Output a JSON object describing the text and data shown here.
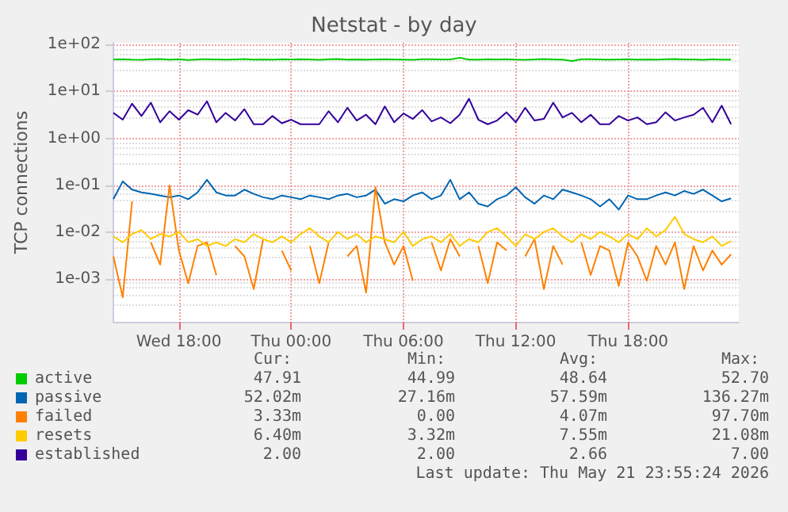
{
  "chart_data": {
    "type": "line",
    "title": "Netstat - by day",
    "ylabel": "TCP connections",
    "log": "y",
    "grid": true,
    "legend": "bottom",
    "marker": "none",
    "line_style": "solid",
    "xlim": [
      "2026-05-20T14:30",
      "2026-05-21T23:55"
    ],
    "xticks": [
      {
        "value": "2026-05-20T18:00",
        "label": "Wed 18:00"
      },
      {
        "value": "2026-05-21T00:00",
        "label": "Thu 00:00"
      },
      {
        "value": "2026-05-21T06:00",
        "label": "Thu 06:00"
      },
      {
        "value": "2026-05-21T12:00",
        "label": "Thu 12:00"
      },
      {
        "value": "2026-05-21T18:00",
        "label": "Thu 18:00"
      }
    ],
    "ylim": [
      0.00012,
      110
    ],
    "yticks": [
      {
        "value": 100,
        "label": "1e+02"
      },
      {
        "value": 10,
        "label": "1e+01"
      },
      {
        "value": 1,
        "label": "1e+00"
      },
      {
        "value": 0.1,
        "label": "1e-01"
      },
      {
        "value": 0.01,
        "label": "1e-02"
      },
      {
        "value": 0.001,
        "label": "1e-03"
      }
    ],
    "x": [
      "2026-05-20T14:30",
      "2026-05-20T15:00",
      "2026-05-20T15:30",
      "2026-05-20T16:00",
      "2026-05-20T16:30",
      "2026-05-20T17:00",
      "2026-05-20T17:30",
      "2026-05-20T18:00",
      "2026-05-20T18:30",
      "2026-05-20T19:00",
      "2026-05-20T19:30",
      "2026-05-20T20:00",
      "2026-05-20T20:30",
      "2026-05-20T21:00",
      "2026-05-20T21:30",
      "2026-05-20T22:00",
      "2026-05-20T22:30",
      "2026-05-20T23:00",
      "2026-05-20T23:30",
      "2026-05-21T00:00",
      "2026-05-21T00:30",
      "2026-05-21T01:00",
      "2026-05-21T01:30",
      "2026-05-21T02:00",
      "2026-05-21T02:30",
      "2026-05-21T03:00",
      "2026-05-21T03:30",
      "2026-05-21T04:00",
      "2026-05-21T04:30",
      "2026-05-21T05:00",
      "2026-05-21T05:30",
      "2026-05-21T06:00",
      "2026-05-21T06:30",
      "2026-05-21T07:00",
      "2026-05-21T07:30",
      "2026-05-21T08:00",
      "2026-05-21T08:30",
      "2026-05-21T09:00",
      "2026-05-21T09:30",
      "2026-05-21T10:00",
      "2026-05-21T10:30",
      "2026-05-21T11:00",
      "2026-05-21T11:30",
      "2026-05-21T12:00",
      "2026-05-21T12:30",
      "2026-05-21T13:00",
      "2026-05-21T13:30",
      "2026-05-21T14:00",
      "2026-05-21T14:30",
      "2026-05-21T15:00",
      "2026-05-21T15:30",
      "2026-05-21T16:00",
      "2026-05-21T16:30",
      "2026-05-21T17:00",
      "2026-05-21T17:30",
      "2026-05-21T18:00",
      "2026-05-21T18:30",
      "2026-05-21T19:00",
      "2026-05-21T19:30",
      "2026-05-21T20:00",
      "2026-05-21T20:30",
      "2026-05-21T21:00",
      "2026-05-21T21:30",
      "2026-05-21T22:00",
      "2026-05-21T22:30",
      "2026-05-21T23:00",
      "2026-05-21T23:30"
    ],
    "series": [
      {
        "name": "active",
        "color": "#00cc00",
        "values": [
          48.5,
          49.2,
          48.1,
          47.6,
          48.9,
          49.5,
          48.2,
          48.8,
          47.3,
          48.6,
          49.1,
          48.4,
          47.9,
          48.7,
          49.3,
          48.2,
          48.6,
          47.8,
          48.9,
          48.3,
          49.0,
          48.5,
          47.6,
          48.8,
          49.4,
          48.1,
          48.6,
          47.9,
          48.4,
          49.2,
          48.7,
          48.0,
          47.5,
          48.9,
          49.1,
          48.3,
          48.6,
          52.7,
          48.2,
          47.8,
          48.9,
          48.4,
          49.0,
          48.1,
          47.7,
          48.6,
          49.3,
          48.5,
          48.0,
          45.0,
          48.8,
          49.2,
          48.3,
          47.9,
          48.7,
          49.0,
          48.2,
          48.6,
          47.8,
          48.9,
          49.4,
          48.3,
          48.5,
          47.6,
          48.8,
          48.2,
          47.9
        ]
      },
      {
        "name": "passive",
        "color": "#0066b3",
        "values": [
          0.05,
          0.12,
          0.08,
          0.07,
          0.065,
          0.06,
          0.055,
          0.06,
          0.05,
          0.07,
          0.13,
          0.07,
          0.06,
          0.06,
          0.08,
          0.065,
          0.055,
          0.05,
          0.06,
          0.055,
          0.05,
          0.06,
          0.055,
          0.05,
          0.06,
          0.065,
          0.055,
          0.06,
          0.08,
          0.04,
          0.05,
          0.045,
          0.06,
          0.07,
          0.05,
          0.06,
          0.13,
          0.05,
          0.07,
          0.04,
          0.035,
          0.05,
          0.06,
          0.09,
          0.055,
          0.04,
          0.06,
          0.05,
          0.08,
          0.07,
          0.06,
          0.05,
          0.035,
          0.05,
          0.03,
          0.06,
          0.05,
          0.05,
          0.06,
          0.07,
          0.06,
          0.075,
          0.065,
          0.08,
          0.06,
          0.045,
          0.052
        ]
      },
      {
        "name": "failed",
        "color": "#ff8000",
        "values": [
          0.003,
          0.0004,
          0.045,
          null,
          0.006,
          0.002,
          0.098,
          0.004,
          0.0008,
          0.005,
          0.006,
          0.0012,
          null,
          0.005,
          0.003,
          0.0006,
          0.007,
          null,
          0.004,
          0.0015,
          null,
          0.005,
          0.0008,
          0.006,
          null,
          0.003,
          0.005,
          0.0005,
          0.09,
          0.006,
          0.002,
          0.005,
          0.0009,
          null,
          0.006,
          0.0015,
          0.007,
          0.003,
          null,
          0.005,
          0.0008,
          0.006,
          0.004,
          null,
          0.003,
          0.007,
          0.0006,
          0.005,
          0.002,
          null,
          0.006,
          0.0012,
          0.005,
          0.004,
          0.0007,
          0.006,
          0.003,
          0.0009,
          0.005,
          0.002,
          0.006,
          0.0006,
          0.005,
          0.0015,
          0.004,
          0.002,
          0.0033
        ]
      },
      {
        "name": "resets",
        "color": "#ffcc00",
        "values": [
          0.008,
          0.006,
          0.009,
          0.011,
          0.007,
          0.009,
          0.008,
          0.01,
          0.006,
          0.007,
          0.005,
          0.006,
          0.005,
          0.007,
          0.006,
          0.009,
          0.007,
          0.006,
          0.008,
          0.006,
          0.009,
          0.012,
          0.008,
          0.006,
          0.01,
          0.007,
          0.009,
          0.006,
          0.008,
          0.007,
          0.006,
          0.01,
          0.005,
          0.007,
          0.008,
          0.006,
          0.009,
          0.005,
          0.007,
          0.006,
          0.01,
          0.012,
          0.008,
          0.005,
          0.009,
          0.007,
          0.01,
          0.012,
          0.008,
          0.006,
          0.009,
          0.007,
          0.01,
          0.008,
          0.006,
          0.009,
          0.007,
          0.012,
          0.008,
          0.011,
          0.021,
          0.009,
          0.007,
          0.006,
          0.008,
          0.005,
          0.0064
        ]
      },
      {
        "name": "established",
        "color": "#330099",
        "values": [
          3.5,
          2.5,
          5.5,
          3,
          5.8,
          2.2,
          3.8,
          2.5,
          4,
          3.2,
          6.2,
          2.2,
          3.5,
          2.4,
          4.2,
          2,
          2,
          3,
          2.1,
          2.5,
          2,
          2,
          2,
          3.8,
          2.2,
          4.5,
          2.4,
          3.2,
          2,
          4.8,
          2.2,
          3.4,
          2.6,
          4,
          2.3,
          2.8,
          2.1,
          3.2,
          7,
          2.5,
          2,
          2.4,
          3.6,
          2.2,
          4.5,
          2.4,
          2.6,
          5.8,
          2.8,
          3.5,
          2.2,
          3.2,
          2,
          2,
          3,
          2.4,
          2.8,
          2,
          2.2,
          3.6,
          2.4,
          2.8,
          3.2,
          4.5,
          2.2,
          5,
          2
        ]
      }
    ],
    "annotations": [
      "Cur:",
      "Min:",
      "Avg:",
      "Max:",
      "47.91",
      "44.99",
      "48.64",
      "52.70",
      "52.02m",
      "27.16m",
      "57.59m",
      "136.27m",
      "3.33m",
      "0.00",
      "4.07m",
      "97.70m",
      "6.40m",
      "3.32m",
      "7.55m",
      "21.08m",
      "2.00",
      "2.00",
      "2.66",
      "7.00",
      "Last update: Thu May 21 23:55:24 2026"
    ]
  }
}
